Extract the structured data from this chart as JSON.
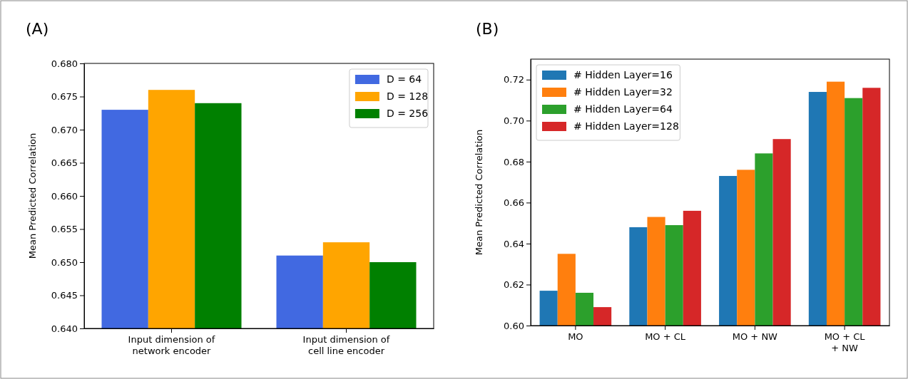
{
  "chart_data": [
    {
      "type": "bar",
      "title": "(A)",
      "ylabel": "Mean Predicted Correlation",
      "categories": [
        "Input dimension of\nnetwork encoder",
        "Input dimension of\ncell line encoder"
      ],
      "series": [
        {
          "name": "D = 64",
          "color": "#4169e1",
          "values": [
            0.673,
            0.651
          ]
        },
        {
          "name": "D = 128",
          "color": "#ffa500",
          "values": [
            0.676,
            0.653
          ]
        },
        {
          "name": "D = 256",
          "color": "#008000",
          "values": [
            0.674,
            0.65
          ]
        }
      ],
      "ylim": [
        0.64,
        0.68
      ],
      "yticks": [
        {
          "value": 0.64,
          "label": "0.640"
        },
        {
          "value": 0.645,
          "label": "0.645"
        },
        {
          "value": 0.65,
          "label": "0.650"
        },
        {
          "value": 0.655,
          "label": "0.655"
        },
        {
          "value": 0.66,
          "label": "0.660"
        },
        {
          "value": 0.665,
          "label": "0.665"
        },
        {
          "value": 0.67,
          "label": "0.670"
        },
        {
          "value": 0.675,
          "label": "0.675"
        },
        {
          "value": 0.68,
          "label": "0.680"
        }
      ],
      "legend": "top right"
    },
    {
      "type": "bar",
      "title": "(B)",
      "ylabel": "Mean Predicted Correlation",
      "categories": [
        "MO",
        "MO + CL",
        "MO + NW",
        "MO + CL\n+ NW"
      ],
      "series": [
        {
          "name": "# Hidden Layer=16",
          "color": "#1f77b4",
          "values": [
            0.617,
            0.648,
            0.673,
            0.714
          ]
        },
        {
          "name": "# Hidden Layer=32",
          "color": "#ff7f0e",
          "values": [
            0.635,
            0.653,
            0.676,
            0.719
          ]
        },
        {
          "name": "# Hidden Layer=64",
          "color": "#2ca02c",
          "values": [
            0.616,
            0.649,
            0.684,
            0.711
          ]
        },
        {
          "name": "# Hidden Layer=128",
          "color": "#d62728",
          "values": [
            0.609,
            0.656,
            0.691,
            0.716
          ]
        }
      ],
      "ylim": [
        0.6,
        0.73
      ],
      "yticks": [
        {
          "value": 0.6,
          "label": "0.60"
        },
        {
          "value": 0.62,
          "label": "0.62"
        },
        {
          "value": 0.64,
          "label": "0.64"
        },
        {
          "value": 0.66,
          "label": "0.66"
        },
        {
          "value": 0.68,
          "label": "0.68"
        },
        {
          "value": 0.7,
          "label": "0.70"
        },
        {
          "value": 0.72,
          "label": "0.72"
        }
      ],
      "legend": "top left"
    }
  ]
}
